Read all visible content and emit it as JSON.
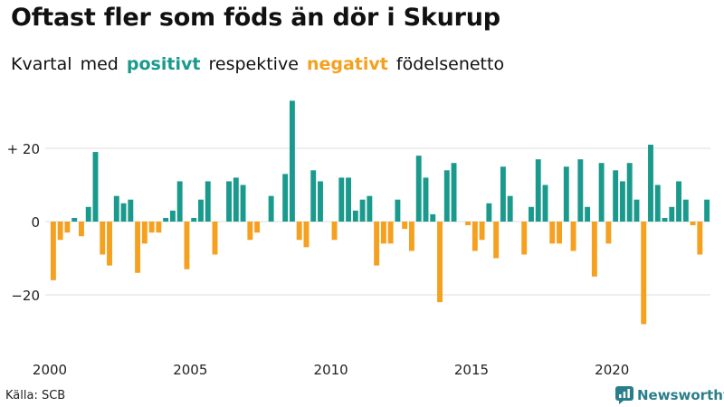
{
  "title": "Oftast fler som föds än dör i Skurup",
  "subtitle": {
    "w1": "Kvartal",
    "w2": "med",
    "positive": "positivt",
    "w3": "respektive",
    "negative": "negativt",
    "w4": "födelsenetto"
  },
  "source": "Källa: SCB",
  "brand": "Newsworthy",
  "colors": {
    "positive": "#1a9a8c",
    "negative": "#f5a01f",
    "grid": "#dddddd",
    "brand": "#2a7e8a"
  },
  "chart_data": {
    "type": "bar",
    "x_start_year": 2000,
    "ylim": [
      -30,
      35
    ],
    "yticks": [
      {
        "value": 20,
        "label": "+ 20"
      },
      {
        "value": 0,
        "label": "0"
      },
      {
        "value": -20,
        "label": "−20"
      }
    ],
    "xticks": [
      {
        "year": 2000,
        "label": "2000"
      },
      {
        "year": 2005,
        "label": "2005"
      },
      {
        "year": 2010,
        "label": "2010"
      },
      {
        "year": 2015,
        "label": "2015"
      },
      {
        "year": 2020,
        "label": "2020"
      }
    ],
    "grid": true,
    "values": [
      -16,
      -5,
      -3,
      1,
      -4,
      4,
      19,
      -9,
      -12,
      7,
      5,
      6,
      -14,
      -6,
      -3,
      -3,
      1,
      3,
      11,
      -13,
      1,
      6,
      11,
      -9,
      0,
      11,
      12,
      10,
      -5,
      -3,
      0,
      7,
      0,
      13,
      33,
      -5,
      -7,
      14,
      11,
      0,
      -5,
      12,
      12,
      3,
      6,
      7,
      -12,
      -6,
      -6,
      6,
      -2,
      -8,
      18,
      12,
      2,
      -22,
      14,
      16,
      0,
      -1,
      -8,
      -5,
      5,
      -10,
      15,
      7,
      0,
      -9,
      4,
      17,
      10,
      -6,
      -6,
      15,
      -8,
      17,
      4,
      -15,
      16,
      -6,
      14,
      11,
      16,
      6,
      -28,
      21,
      10,
      1,
      4,
      11,
      6,
      -1,
      -9,
      6
    ]
  }
}
